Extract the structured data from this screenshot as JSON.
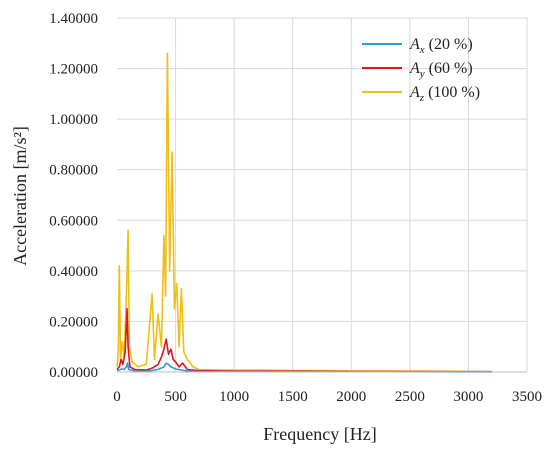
{
  "chart_data": {
    "type": "line",
    "title": "",
    "xlabel": "Frequency [Hz]",
    "ylabel": "Acceleration [m/s²]",
    "xlim": [
      0,
      3500
    ],
    "ylim": [
      0,
      1.4
    ],
    "x_ticks": [
      0,
      500,
      1000,
      1500,
      2000,
      2500,
      3000,
      3500
    ],
    "y_ticks": [
      0,
      0.2,
      0.4,
      0.6,
      0.8,
      1.0,
      1.2,
      1.4
    ],
    "x_tick_labels": [
      "0",
      "500",
      "1000",
      "1500",
      "2000",
      "2500",
      "3000",
      "3500"
    ],
    "y_tick_labels": [
      "0.00000",
      "0.20000",
      "0.40000",
      "0.60000",
      "0.80000",
      "1.00000",
      "1.20000",
      "1.40000"
    ],
    "grid": true,
    "legend_position": "top-right",
    "series": [
      {
        "name": "Ax (20 %)",
        "legend_sym": "A",
        "legend_sub": "x",
        "legend_rest": " (20 %)",
        "color": "#2E9BDB",
        "points": [
          [
            0,
            0.005
          ],
          [
            20,
            0.008
          ],
          [
            40,
            0.012
          ],
          [
            60,
            0.01
          ],
          [
            80,
            0.02
          ],
          [
            90,
            0.035
          ],
          [
            100,
            0.01
          ],
          [
            150,
            0.004
          ],
          [
            250,
            0.003
          ],
          [
            300,
            0.006
          ],
          [
            350,
            0.01
          ],
          [
            400,
            0.02
          ],
          [
            420,
            0.035
          ],
          [
            440,
            0.03
          ],
          [
            460,
            0.02
          ],
          [
            500,
            0.012
          ],
          [
            550,
            0.008
          ],
          [
            600,
            0.004
          ],
          [
            700,
            0.002
          ],
          [
            1000,
            0.001
          ],
          [
            2000,
            0.001
          ],
          [
            3200,
            0.0005
          ]
        ]
      },
      {
        "name": "Ay (60 %)",
        "legend_sym": "A",
        "legend_sub": "y",
        "legend_rest": " (60 %)",
        "color": "#E0141E",
        "points": [
          [
            0,
            0.01
          ],
          [
            20,
            0.02
          ],
          [
            35,
            0.05
          ],
          [
            50,
            0.03
          ],
          [
            70,
            0.08
          ],
          [
            85,
            0.25
          ],
          [
            95,
            0.1
          ],
          [
            110,
            0.02
          ],
          [
            150,
            0.01
          ],
          [
            250,
            0.008
          ],
          [
            300,
            0.015
          ],
          [
            350,
            0.03
          ],
          [
            380,
            0.06
          ],
          [
            400,
            0.09
          ],
          [
            420,
            0.13
          ],
          [
            440,
            0.07
          ],
          [
            460,
            0.09
          ],
          [
            480,
            0.05
          ],
          [
            500,
            0.04
          ],
          [
            530,
            0.02
          ],
          [
            560,
            0.035
          ],
          [
            600,
            0.01
          ],
          [
            700,
            0.005
          ],
          [
            1000,
            0.003
          ],
          [
            1500,
            0.003
          ],
          [
            2000,
            0.002
          ],
          [
            3200,
            0.001
          ]
        ]
      },
      {
        "name": "Az (100 %)",
        "legend_sym": "A",
        "legend_sub": "z",
        "legend_rest": " (100 %)",
        "color": "#F0BE16",
        "points": [
          [
            0,
            0.02
          ],
          [
            10,
            0.08
          ],
          [
            20,
            0.42
          ],
          [
            30,
            0.05
          ],
          [
            45,
            0.12
          ],
          [
            60,
            0.06
          ],
          [
            80,
            0.3
          ],
          [
            95,
            0.56
          ],
          [
            105,
            0.1
          ],
          [
            130,
            0.04
          ],
          [
            180,
            0.02
          ],
          [
            250,
            0.03
          ],
          [
            300,
            0.31
          ],
          [
            320,
            0.05
          ],
          [
            350,
            0.23
          ],
          [
            380,
            0.1
          ],
          [
            400,
            0.54
          ],
          [
            415,
            0.3
          ],
          [
            430,
            1.26
          ],
          [
            450,
            0.4
          ],
          [
            470,
            0.87
          ],
          [
            490,
            0.25
          ],
          [
            510,
            0.35
          ],
          [
            530,
            0.1
          ],
          [
            550,
            0.33
          ],
          [
            570,
            0.08
          ],
          [
            600,
            0.05
          ],
          [
            650,
            0.02
          ],
          [
            700,
            0.01
          ],
          [
            900,
            0.008
          ],
          [
            1200,
            0.008
          ],
          [
            1500,
            0.006
          ],
          [
            1800,
            0.005
          ],
          [
            2000,
            0.004
          ],
          [
            2500,
            0.003
          ],
          [
            3000,
            0.002
          ],
          [
            3200,
            0.001
          ]
        ]
      }
    ]
  }
}
